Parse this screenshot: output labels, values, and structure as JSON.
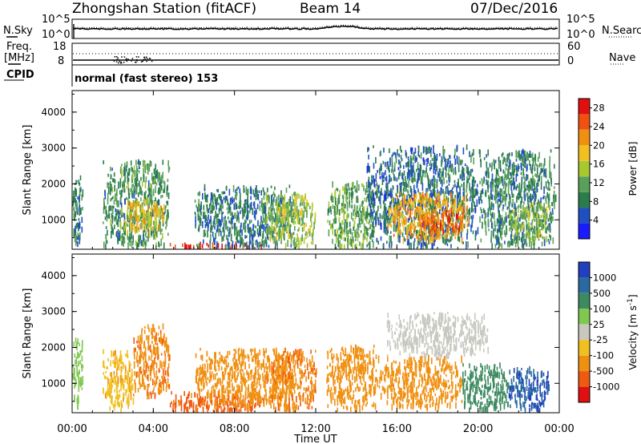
{
  "header": {
    "station": "Zhongshan Station (fitACF)",
    "beam": "Beam 14",
    "date": "07/Dec/2016"
  },
  "top_panels": {
    "nsky_label": "N.Sky",
    "nsearch_label": "N.Search",
    "noise_tick_hi": "10^5",
    "noise_tick_lo": "10^0",
    "freq_label": "Freq.",
    "freq_unit": "[MHz]",
    "freq_tick_hi": "18",
    "freq_tick_lo": "8",
    "nave_label": "Nave",
    "nave_tick_hi": "60",
    "nave_tick_lo": "0",
    "cpid_label": "CPID",
    "cpid_text": "normal (fast stereo) 153"
  },
  "chart_data": [
    {
      "type": "heatmap",
      "title": "",
      "quantity": "Power",
      "xlabel": "",
      "ylabel": "Slant Range [km]",
      "x_ticks": [
        "00:00",
        "04:00",
        "08:00",
        "12:00",
        "16:00",
        "20:00",
        "00:00"
      ],
      "x_range_hours": [
        0,
        24
      ],
      "y_ticks": [
        "1000",
        "2000",
        "3000",
        "4000"
      ],
      "ylim": [
        180,
        4600
      ],
      "colorbar": {
        "label": "Power [dB]",
        "ticks": [
          "4",
          "8",
          "12",
          "16",
          "20",
          "24",
          "28"
        ],
        "range": [
          0,
          30
        ],
        "colors": [
          "#1a1aff",
          "#2050c0",
          "#2a7d4a",
          "#5aa05a",
          "#a8c830",
          "#f0c020",
          "#f09010",
          "#f05010",
          "#e01010"
        ]
      },
      "regions": [
        {
          "t0": 0.0,
          "t1": 0.5,
          "r0": 300,
          "r1": 2300,
          "value": 8
        },
        {
          "t0": 1.5,
          "t1": 4.8,
          "r0": 300,
          "r1": 2700,
          "value": 10
        },
        {
          "t0": 2.5,
          "t1": 4.5,
          "r0": 700,
          "r1": 1600,
          "value": 18
        },
        {
          "t0": 4.8,
          "t1": 9.5,
          "r0": 250,
          "r1": 400,
          "value": 27
        },
        {
          "t0": 6.0,
          "t1": 11.0,
          "r0": 300,
          "r1": 2000,
          "value": 8
        },
        {
          "t0": 9.5,
          "t1": 12.0,
          "r0": 300,
          "r1": 1800,
          "value": 14
        },
        {
          "t0": 12.5,
          "t1": 15.0,
          "r0": 300,
          "r1": 2100,
          "value": 12
        },
        {
          "t0": 14.5,
          "t1": 20.0,
          "r0": 300,
          "r1": 3100,
          "value": 7
        },
        {
          "t0": 15.5,
          "t1": 19.5,
          "r0": 500,
          "r1": 1800,
          "value": 20
        },
        {
          "t0": 17.0,
          "t1": 19.2,
          "r0": 700,
          "r1": 1300,
          "value": 25
        },
        {
          "t0": 20.0,
          "t1": 23.8,
          "r0": 300,
          "r1": 3000,
          "value": 9
        },
        {
          "t0": 21.5,
          "t1": 23.5,
          "r0": 500,
          "r1": 1500,
          "value": 14
        }
      ]
    },
    {
      "type": "heatmap",
      "title": "",
      "quantity": "Velocity",
      "xlabel": "Time UT",
      "ylabel": "Slant Range [km]",
      "x_ticks": [
        "00:00",
        "04:00",
        "08:00",
        "12:00",
        "16:00",
        "20:00",
        "00:00"
      ],
      "x_range_hours": [
        0,
        24
      ],
      "y_ticks": [
        "1000",
        "2000",
        "3000",
        "4000"
      ],
      "ylim": [
        180,
        4600
      ],
      "colorbar": {
        "label": "Velocity [m s^-1]",
        "label_prefix": "Velocity [m s",
        "label_exp": "-1",
        "label_suffix": "]",
        "ticks": [
          "1000",
          "500",
          "100",
          "25",
          "-25",
          "-100",
          "-500",
          "-1000"
        ],
        "bins": [
          1200,
          750,
          300,
          62,
          0,
          -62,
          -300,
          -750,
          -1200
        ],
        "colors": [
          "#2040c0",
          "#2a6aa0",
          "#3d8a60",
          "#80c850",
          "#c8c8c0",
          "#f0c020",
          "#f09010",
          "#f05a10",
          "#e01010"
        ]
      },
      "regions": [
        {
          "t0": 0.0,
          "t1": 0.5,
          "r0": 300,
          "r1": 2300,
          "value": 80
        },
        {
          "t0": 1.5,
          "t1": 3.0,
          "r0": 300,
          "r1": 2000,
          "value": -150
        },
        {
          "t0": 3.0,
          "t1": 4.8,
          "r0": 700,
          "r1": 2700,
          "value": -450
        },
        {
          "t0": 4.8,
          "t1": 9.5,
          "r0": 250,
          "r1": 800,
          "value": -700
        },
        {
          "t0": 6.0,
          "t1": 11.0,
          "r0": 400,
          "r1": 2000,
          "value": -300
        },
        {
          "t0": 9.5,
          "t1": 12.0,
          "r0": 300,
          "r1": 2000,
          "value": -450
        },
        {
          "t0": 12.5,
          "t1": 15.0,
          "r0": 300,
          "r1": 2100,
          "value": -350
        },
        {
          "t0": 15.0,
          "t1": 19.2,
          "r0": 400,
          "r1": 1800,
          "value": -400
        },
        {
          "t0": 15.5,
          "t1": 20.5,
          "r0": 1800,
          "r1": 3000,
          "value": 5
        },
        {
          "t0": 19.2,
          "t1": 21.5,
          "r0": 300,
          "r1": 1600,
          "value": 300
        },
        {
          "t0": 21.5,
          "t1": 23.5,
          "r0": 300,
          "r1": 1500,
          "value": 900
        }
      ]
    }
  ]
}
